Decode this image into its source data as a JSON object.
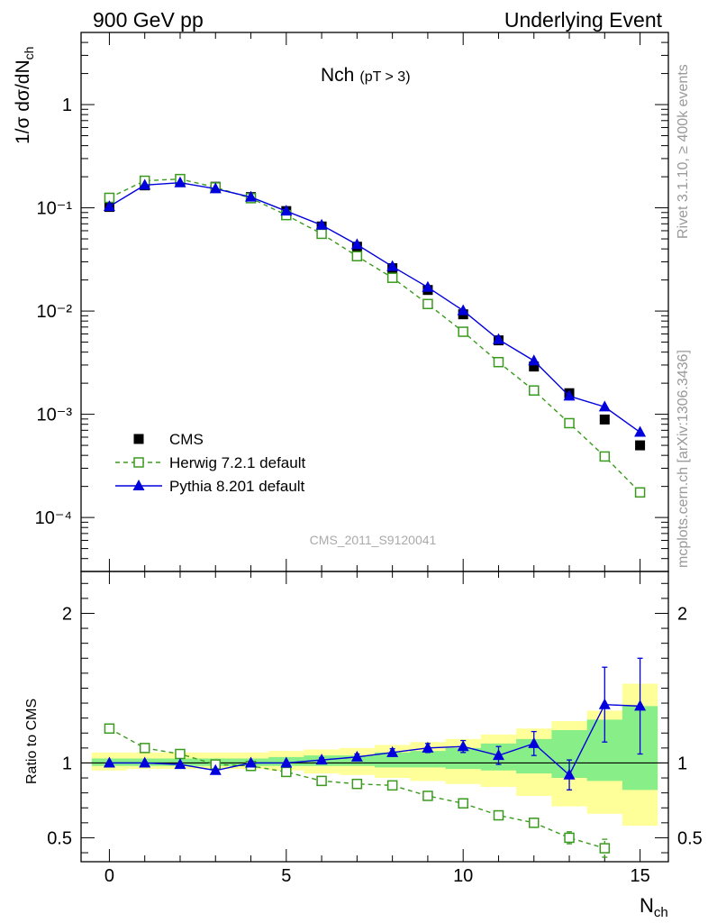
{
  "header": {
    "left": "900 GeV pp",
    "right": "Underlying Event"
  },
  "side_labels": {
    "upper": "Rivet 3.1.10, ≥ 400k events",
    "lower": "mcplots.cern.ch [arXiv:1306.3436]"
  },
  "watermark": "CMS_2011_S9120041",
  "colors": {
    "cms": "#000000",
    "herwig": "#3a9a1e",
    "pythia": "#0000dd",
    "band_outer": "#ffff99",
    "band_inner": "#88ee88"
  },
  "chart_data": [
    {
      "type": "scatter",
      "scale": "log",
      "title_main": "Nch",
      "title_sub": "(pT >  3)",
      "ylabel": "1/σ dσ/dN",
      "ylabel_sub": "ch",
      "ylim": [
        3e-05,
        5
      ],
      "xlim": [
        -0.8,
        15.8
      ],
      "y_tick_labels": [
        "1",
        "10⁻¹",
        "10⁻²",
        "10⁻³",
        "10⁻⁴"
      ],
      "y_tick_values": [
        1,
        0.1,
        0.01,
        0.001,
        0.0001
      ],
      "legend_position": "bottom-left",
      "series": [
        {
          "name": "CMS",
          "marker": "square-filled",
          "x": [
            0,
            1,
            2,
            3,
            4,
            5,
            6,
            7,
            8,
            9,
            10,
            11,
            12,
            13,
            14,
            15
          ],
          "y": [
            0.102,
            0.165,
            0.178,
            0.16,
            0.127,
            0.093,
            0.066,
            0.042,
            0.026,
            0.016,
            0.0093,
            0.0052,
            0.0029,
            0.0016,
            0.00089,
            0.0005
          ]
        },
        {
          "name": "Herwig 7.2.1 default",
          "marker": "square-open",
          "line": "dashed",
          "x": [
            0,
            1,
            2,
            3,
            4,
            5,
            6,
            7,
            8,
            9,
            10,
            11,
            12,
            13,
            14,
            15
          ],
          "y": [
            0.125,
            0.183,
            0.19,
            0.158,
            0.124,
            0.085,
            0.056,
            0.034,
            0.021,
            0.0117,
            0.0063,
            0.0032,
            0.0017,
            0.00082,
            0.00039,
            0.000175
          ]
        },
        {
          "name": "Pythia 8.201 default",
          "marker": "triangle-filled",
          "line": "solid",
          "x": [
            0,
            1,
            2,
            3,
            4,
            5,
            6,
            7,
            8,
            9,
            10,
            11,
            12,
            13,
            14,
            15
          ],
          "y": [
            0.103,
            0.166,
            0.175,
            0.153,
            0.127,
            0.093,
            0.068,
            0.044,
            0.027,
            0.017,
            0.0101,
            0.0053,
            0.0033,
            0.0015,
            0.00118,
            0.00067
          ]
        }
      ]
    },
    {
      "type": "scatter",
      "scale": "linear",
      "ylabel": "Ratio to CMS",
      "xlabel": "N",
      "xlabel_sub": "ch",
      "ylim": [
        0.34,
        2.28
      ],
      "xlim": [
        -0.8,
        15.8
      ],
      "x_tick_labels": [
        "0",
        "5",
        "10",
        "15"
      ],
      "x_tick_values": [
        0,
        5,
        10,
        15
      ],
      "y_tick_labels": [
        "2",
        "1",
        "0.5"
      ],
      "y_tick_values": [
        2,
        1,
        0.5
      ],
      "bands": {
        "x": [
          0,
          1,
          2,
          3,
          4,
          5,
          6,
          7,
          8,
          9,
          10,
          11,
          12,
          13,
          14,
          15
        ],
        "outer_low": [
          0.95,
          0.96,
          0.96,
          0.96,
          0.96,
          0.95,
          0.93,
          0.92,
          0.9,
          0.88,
          0.86,
          0.84,
          0.78,
          0.71,
          0.66,
          0.58
        ],
        "outer_high": [
          1.07,
          1.07,
          1.07,
          1.07,
          1.07,
          1.08,
          1.09,
          1.1,
          1.12,
          1.14,
          1.16,
          1.19,
          1.23,
          1.28,
          1.35,
          1.53
        ],
        "inner_low": [
          0.98,
          0.98,
          0.98,
          0.98,
          0.98,
          0.98,
          0.98,
          0.98,
          0.97,
          0.97,
          0.96,
          0.95,
          0.93,
          0.9,
          0.88,
          0.82
        ],
        "inner_high": [
          1.03,
          1.03,
          1.03,
          1.03,
          1.03,
          1.04,
          1.05,
          1.05,
          1.07,
          1.08,
          1.1,
          1.13,
          1.16,
          1.22,
          1.29,
          1.38
        ]
      },
      "series": [
        {
          "name": "Herwig 7.2.1 default",
          "marker": "square-open",
          "line": "dashed",
          "x": [
            0,
            1,
            2,
            3,
            4,
            5,
            6,
            7,
            8,
            9,
            10,
            11,
            12,
            13,
            14
          ],
          "y": [
            1.23,
            1.1,
            1.06,
            0.99,
            0.98,
            0.94,
            0.88,
            0.86,
            0.85,
            0.78,
            0.73,
            0.65,
            0.6,
            0.5,
            0.43
          ],
          "err": [
            0.01,
            0.01,
            0.01,
            0.01,
            0.01,
            0.01,
            0.01,
            0.01,
            0.01,
            0.01,
            0.015,
            0.02,
            0.03,
            0.04,
            0.06
          ]
        },
        {
          "name": "Pythia 8.201 default",
          "marker": "triangle-filled",
          "line": "solid",
          "x": [
            0,
            1,
            2,
            3,
            4,
            5,
            6,
            7,
            8,
            9,
            10,
            11,
            12,
            13,
            14,
            15
          ],
          "y": [
            1.0,
            1.0,
            0.99,
            0.95,
            1.0,
            1.0,
            1.02,
            1.04,
            1.07,
            1.1,
            1.11,
            1.05,
            1.13,
            0.92,
            1.39,
            1.38
          ],
          "err": [
            0.01,
            0.01,
            0.01,
            0.01,
            0.01,
            0.01,
            0.015,
            0.02,
            0.025,
            0.03,
            0.04,
            0.06,
            0.08,
            0.1,
            0.25,
            0.32
          ]
        }
      ]
    }
  ]
}
